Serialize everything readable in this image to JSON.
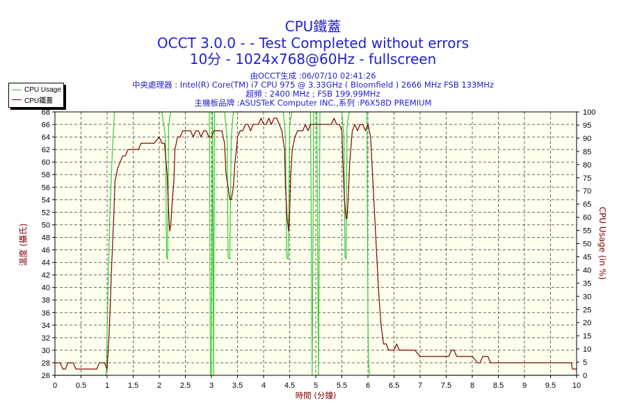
{
  "header": {
    "title": "CPU鐵蓋",
    "subtitle1": "OCCT 3.0.0 -  - Test Completed without errors",
    "subtitle2": "10分 - 1024x768@60Hz - fullscreen",
    "info1": "由OCCT生成 :06/07/10 02:41:26",
    "info2": "中央處理器 : Intel(R) Core(TM) i7 CPU 975 @ 3.33GHz ( Bloomfield ) 2666 MHz FSB 133MHz",
    "info3": "超頻 : 2400 MHz ; FSB 199.99MHz",
    "info4": "主機板品牌 :ASUSTeK Computer INC.,系列 :P6X58D PREMIUM"
  },
  "colors": {
    "usage": "#33cc33",
    "temp": "#800000",
    "title": "#1f1fd0",
    "plot_bg": "#ffffee"
  },
  "chart_data": {
    "type": "line",
    "xlabel": "時間 (分鐘)",
    "ylabel_left": "溫度 (攝氏)",
    "ylabel_right": "CPU Usage (in %)",
    "xlim": [
      0,
      10
    ],
    "ylim_left": [
      26,
      68
    ],
    "ylim_right": [
      0,
      100
    ],
    "x_ticks": [
      "0",
      "0.5",
      "1",
      "1.5",
      "2",
      "2.5",
      "3",
      "3.5",
      "4",
      "4.5",
      "5",
      "5.5",
      "6",
      "6.5",
      "7",
      "7.5",
      "8",
      "8.5",
      "9",
      "9.5",
      "10"
    ],
    "y_left_ticks": [
      "26",
      "28",
      "30",
      "32",
      "34",
      "36",
      "38",
      "40",
      "42",
      "44",
      "46",
      "48",
      "50",
      "52",
      "54",
      "56",
      "58",
      "60",
      "62",
      "64",
      "66",
      "68"
    ],
    "y_right_ticks": [
      "0",
      "5",
      "10",
      "15",
      "20",
      "25",
      "30",
      "35",
      "40",
      "45",
      "50",
      "55",
      "60",
      "65",
      "70",
      "75",
      "80",
      "85",
      "90",
      "95",
      "100"
    ],
    "grid": true,
    "legend_position": "top-left",
    "series": [
      {
        "name": "CPU Usage",
        "axis": "right",
        "x": [
          0,
          0.98,
          1.0,
          1.02,
          1.05,
          1.1,
          1.14,
          2.05,
          2.12,
          2.14,
          2.16,
          2.18,
          2.22,
          2.96,
          2.98,
          3.0,
          3.02,
          3.04,
          3.06,
          3.25,
          3.3,
          3.32,
          3.35,
          3.38,
          3.42,
          4.38,
          4.42,
          4.44,
          4.47,
          4.5,
          4.54,
          4.9,
          4.93,
          4.96,
          5.02,
          5.05,
          5.08,
          5.5,
          5.54,
          5.56,
          5.58,
          5.6,
          5.64,
          5.98,
          6.0,
          6.01,
          6.03,
          10
        ],
        "values": [
          0,
          0,
          15,
          35,
          60,
          85,
          100,
          100,
          90,
          45,
          44,
          95,
          100,
          100,
          0,
          0,
          100,
          0,
          100,
          100,
          90,
          45,
          44,
          90,
          100,
          100,
          90,
          45,
          44,
          95,
          100,
          100,
          0,
          100,
          100,
          0,
          100,
          100,
          90,
          45,
          44,
          95,
          100,
          100,
          20,
          5,
          0,
          0
        ]
      },
      {
        "name": "CPU鐵蓋",
        "axis": "left",
        "x": [
          0,
          0.1,
          0.15,
          0.2,
          0.25,
          0.3,
          0.35,
          0.4,
          0.5,
          0.8,
          0.85,
          0.9,
          0.95,
          1.0,
          1.02,
          1.04,
          1.06,
          1.08,
          1.1,
          1.13,
          1.15,
          1.18,
          1.2,
          1.25,
          1.3,
          1.35,
          1.4,
          1.5,
          1.55,
          1.6,
          1.65,
          1.7,
          1.75,
          1.8,
          1.9,
          2.0,
          2.05,
          2.1,
          2.15,
          2.18,
          2.2,
          2.22,
          2.25,
          2.28,
          2.3,
          2.35,
          2.4,
          2.45,
          2.5,
          2.55,
          2.6,
          2.65,
          2.7,
          2.75,
          2.8,
          2.85,
          2.9,
          2.95,
          3.0,
          3.05,
          3.1,
          3.15,
          3.2,
          3.25,
          3.28,
          3.32,
          3.35,
          3.38,
          3.42,
          3.45,
          3.48,
          3.5,
          3.55,
          3.6,
          3.65,
          3.7,
          3.75,
          3.8,
          3.85,
          3.9,
          3.95,
          4.0,
          4.05,
          4.1,
          4.15,
          4.2,
          4.25,
          4.3,
          4.35,
          4.4,
          4.42,
          4.45,
          4.48,
          4.5,
          4.52,
          4.55,
          4.6,
          4.65,
          4.7,
          4.75,
          4.8,
          4.85,
          4.9,
          5.0,
          5.2,
          5.3,
          5.35,
          5.4,
          5.45,
          5.5,
          5.52,
          5.55,
          5.58,
          5.6,
          5.62,
          5.65,
          5.7,
          5.75,
          5.8,
          5.85,
          5.9,
          5.95,
          6.0,
          6.05,
          6.1,
          6.15,
          6.2,
          6.25,
          6.3,
          6.35,
          6.4,
          6.45,
          6.5,
          6.55,
          6.6,
          6.7,
          6.8,
          6.9,
          7.0,
          7.5,
          7.55,
          7.6,
          7.65,
          7.7,
          7.75,
          7.8,
          8.0,
          8.1,
          8.15,
          8.2,
          8.25,
          8.3,
          8.35,
          8.4,
          9.0,
          9.5,
          9.9,
          9.92,
          10
        ],
        "values": [
          28,
          28,
          27,
          27,
          28,
          28,
          28,
          27,
          27,
          27,
          28,
          28,
          28,
          27,
          30,
          33,
          37,
          42,
          46,
          52,
          57,
          58,
          59,
          60,
          61,
          61,
          62,
          62,
          62,
          62,
          63,
          63,
          63,
          63,
          63,
          64,
          63,
          63,
          58,
          52,
          49,
          50,
          54,
          57,
          62,
          64,
          64,
          65,
          65,
          65,
          65,
          64,
          65,
          65,
          64,
          65,
          65,
          64,
          64,
          65,
          65,
          65,
          65,
          63,
          58,
          56,
          54,
          54,
          56,
          60,
          62,
          64,
          65,
          65,
          66,
          66,
          65,
          66,
          66,
          66,
          67,
          66,
          66,
          67,
          66,
          67,
          67,
          66,
          65,
          62,
          56,
          51,
          49,
          52,
          58,
          62,
          64,
          65,
          65,
          65,
          66,
          65,
          66,
          66,
          66,
          66,
          67,
          66,
          66,
          65,
          60,
          54,
          51,
          51,
          54,
          60,
          65,
          66,
          65,
          66,
          66,
          65,
          66,
          64,
          56,
          48,
          40,
          34,
          31,
          31,
          30,
          30,
          30,
          31,
          30,
          30,
          30,
          30,
          29,
          29,
          29,
          30,
          30,
          29,
          29,
          29,
          29,
          28,
          28,
          29,
          29,
          29,
          28,
          28,
          28,
          28,
          28,
          27,
          27
        ]
      }
    ]
  }
}
